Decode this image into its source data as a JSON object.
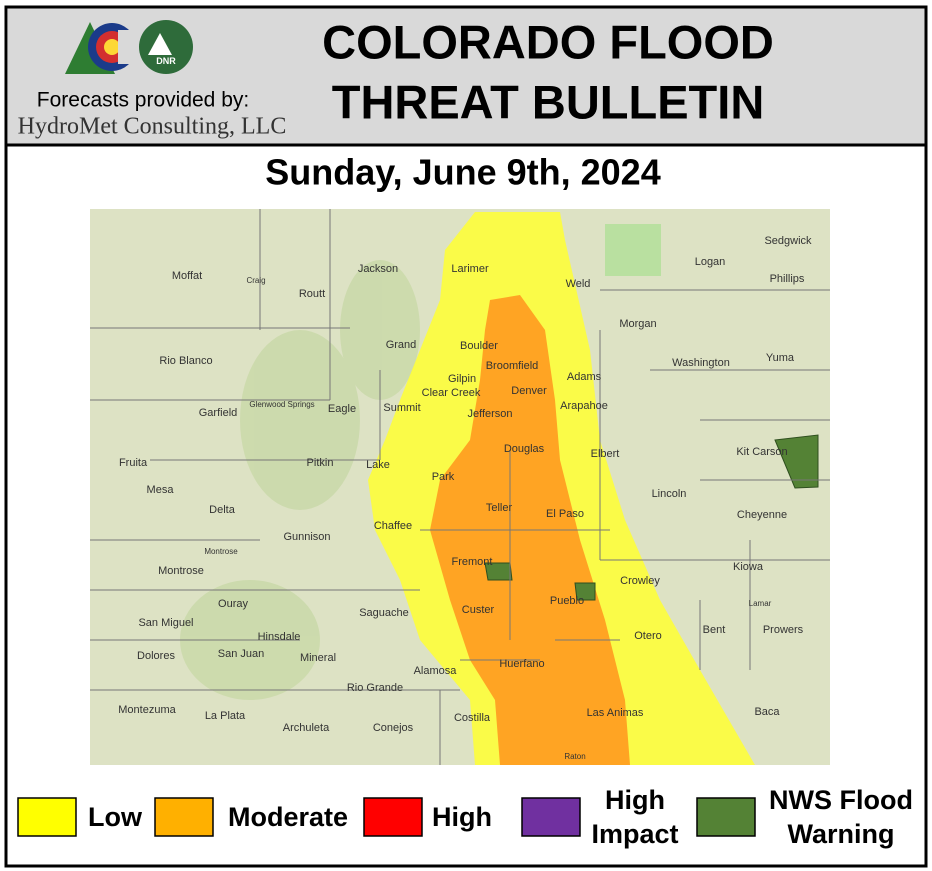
{
  "header": {
    "logo_text": "DNR",
    "title_lines": [
      "COLORADO FLOOD",
      "THREAT BULLETIN"
    ],
    "provider_label": "Forecasts provided by:",
    "provider_name": "HydroMet Consulting, LLC"
  },
  "date": "Sunday, June 9th, 2024",
  "map": {
    "labels": [
      "Moffat",
      "Craig",
      "Jackson",
      "Larimer",
      "Weld",
      "Logan",
      "Sedgwick",
      "Phillips",
      "Routt",
      "Grand",
      "Boulder",
      "Morgan",
      "Rio Blanco",
      "Broomfield",
      "Adams",
      "Washington",
      "Yuma",
      "Gilpin",
      "Clear Creek",
      "Denver",
      "Glenwood Springs",
      "Garfield",
      "Eagle",
      "Summit",
      "Jefferson",
      "Arapahoe",
      "Douglas",
      "Elbert",
      "Kit Carson",
      "Fruita",
      "Pitkin",
      "Lake",
      "Park",
      "Mesa",
      "Lincoln",
      "Delta",
      "Teller",
      "El Paso",
      "Cheyenne",
      "Chaffee",
      "Gunnison",
      "Montrose",
      "Fremont",
      "Kiowa",
      "Montrose",
      "Crowley",
      "Ouray",
      "Saguache",
      "Custer",
      "Pueblo",
      "Lamar",
      "San Miguel",
      "Bent",
      "Prowers",
      "Otero",
      "Hinsdale",
      "Dolores",
      "San Juan",
      "Mineral",
      "Huerfano",
      "Alamosa",
      "Rio Grande",
      "Montezuma",
      "La Plata",
      "Costilla",
      "Las Animas",
      "Baca",
      "Archuleta",
      "Conejos",
      "Raton"
    ]
  },
  "legend": [
    {
      "lines": [
        "Low"
      ],
      "color": "#ffff00"
    },
    {
      "lines": [
        "Moderate"
      ],
      "color": "#ffb000"
    },
    {
      "lines": [
        "High"
      ],
      "color": "#ff0000"
    },
    {
      "lines": [
        "High",
        "Impact"
      ],
      "color": "#7030a0"
    },
    {
      "lines": [
        "NWS Flood",
        "Warning"
      ],
      "color": "#548235"
    }
  ]
}
